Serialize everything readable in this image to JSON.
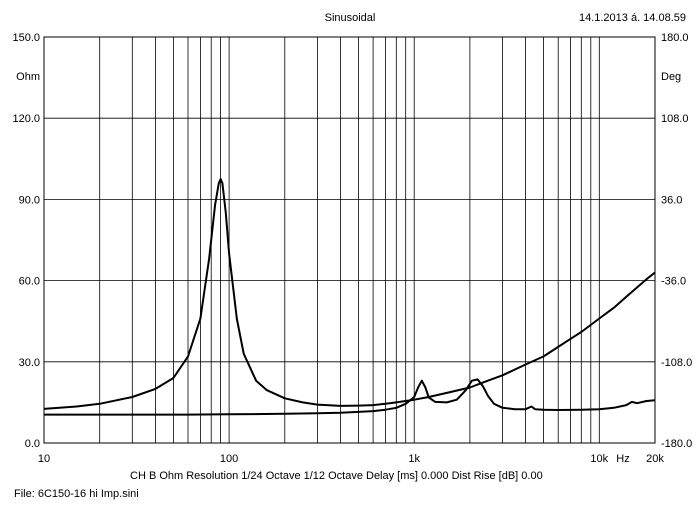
{
  "header": {
    "title": "Sinusoidal",
    "timestamp": "14.1.2013 á. 14.08.59"
  },
  "footer": {
    "info": "CH B  Ohm   Resolution 1/24 Octave   1/12 Octave   Delay [ms] 0.000   Dist Rise [dB] 0.00",
    "file": "File: 6C150-16 hi Imp.sini"
  },
  "chart_data": {
    "type": "line",
    "x_scale": "log",
    "xlim": [
      10,
      20000
    ],
    "x_ticks": [
      {
        "value": 10,
        "label": "10"
      },
      {
        "value": 100,
        "label": "100"
      },
      {
        "value": 1000,
        "label": "1k"
      },
      {
        "value": 10000,
        "label": "10k"
      },
      {
        "value": 20000,
        "label": "20k"
      }
    ],
    "x_unit_label": "Hz",
    "left_axis": {
      "unit": "Ohm",
      "ylim": [
        0,
        150
      ],
      "ticks": [
        "0.0",
        "30.0",
        "60.0",
        "90.0",
        "120.0",
        "150.0"
      ]
    },
    "right_axis": {
      "unit": "Deg",
      "ylim": [
        -180,
        180
      ],
      "ticks": [
        "-180.0",
        "-108.0",
        "-36.0",
        "36.0",
        "108.0",
        "180.0"
      ]
    },
    "grid": true,
    "series": [
      {
        "axis": "left",
        "x": [
          10,
          15,
          20,
          30,
          40,
          50,
          60,
          70,
          78,
          84,
          88,
          90,
          92,
          96,
          100,
          110,
          120,
          140,
          160,
          200,
          250,
          300,
          400,
          500,
          600,
          700,
          800,
          900,
          1000,
          1200,
          1500,
          2000,
          2500,
          3000,
          4000,
          5000,
          6000,
          7000,
          8000,
          10000,
          12000,
          14000,
          16000,
          18000,
          20000
        ],
        "y": [
          12.6,
          13.5,
          14.5,
          17,
          20,
          24,
          32,
          46,
          68,
          88,
          96,
          97.5,
          96,
          85,
          70,
          46,
          33,
          23,
          19.5,
          16.5,
          15,
          14.2,
          13.7,
          13.8,
          14,
          14.5,
          15,
          15.5,
          16,
          17,
          18.5,
          20.5,
          23,
          25,
          29,
          32,
          35.5,
          38.5,
          41,
          46,
          50,
          54,
          57.5,
          60.5,
          63
        ]
      },
      {
        "axis": "left",
        "x": [
          10,
          30,
          60,
          100,
          200,
          300,
          400,
          500,
          600,
          700,
          800,
          900,
          1000,
          1050,
          1100,
          1150,
          1200,
          1300,
          1500,
          1700,
          1900,
          2050,
          2200,
          2350,
          2500,
          2700,
          3000,
          3500,
          4000,
          4300,
          4500,
          5000,
          6000,
          8000,
          10000,
          12000,
          14000,
          15000,
          16000,
          18000,
          20000
        ],
        "y": [
          10.5,
          10.5,
          10.5,
          10.6,
          10.8,
          11,
          11.2,
          11.5,
          11.8,
          12.3,
          13,
          14.5,
          17,
          20.5,
          23,
          20.5,
          16.8,
          15.2,
          15,
          16,
          19.5,
          23,
          23.5,
          21,
          17.5,
          14.5,
          13,
          12.5,
          12.5,
          13.5,
          12.5,
          12.3,
          12.2,
          12.3,
          12.5,
          13,
          14,
          15.2,
          14.7,
          15.5,
          15.8
        ]
      }
    ]
  }
}
